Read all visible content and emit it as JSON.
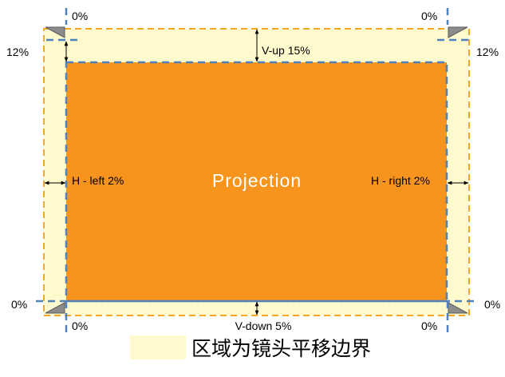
{
  "diagram": {
    "center_label": "Projection",
    "top_label": "V-up 15%",
    "bottom_label": "V-down 5%",
    "left_label": "H - left 2%",
    "right_label": "H - right 2%",
    "corner_labels": {
      "top_left": "0%",
      "top_right": "0%",
      "left_upper": "12%",
      "right_upper": "12%",
      "left_lower": "0%",
      "right_lower": "0%",
      "bottom_left": "0%",
      "bottom_right": "0%"
    }
  },
  "legend": {
    "label": "区域为镜头平移边界"
  },
  "colors": {
    "shift_area": "#FFFACD",
    "shift_area_border": "#F5A623",
    "projection_fill": "#F7941D",
    "boundary_line": "#4F81BD",
    "corner_marker": "#8C8C8C",
    "projection_text": "#FFFFFF"
  }
}
